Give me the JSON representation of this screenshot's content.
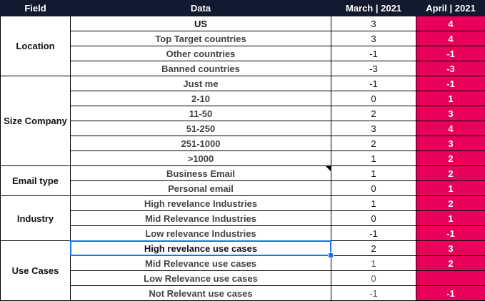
{
  "header": {
    "field": "Field",
    "data": "Data",
    "march": "March | 2021",
    "april": "April | 2021"
  },
  "groups": [
    {
      "field": "Location",
      "rows": [
        {
          "data": "US",
          "march": "3",
          "april": "4"
        },
        {
          "data": "Top Target countries",
          "march": "3",
          "april": "4"
        },
        {
          "data": "Other countries",
          "march": "-1",
          "april": "-1"
        },
        {
          "data": "Banned countries",
          "march": "-3",
          "april": "-3"
        }
      ]
    },
    {
      "field": "Size Company",
      "rows": [
        {
          "data": "Just me",
          "march": "-1",
          "april": "-1"
        },
        {
          "data": "2-10",
          "march": "0",
          "april": "1"
        },
        {
          "data": "11-50",
          "march": "2",
          "april": "3"
        },
        {
          "data": "51-250",
          "march": "3",
          "april": "4"
        },
        {
          "data": "251-1000",
          "march": "2",
          "april": "3"
        },
        {
          "data": ">1000",
          "march": "1",
          "april": "2"
        }
      ]
    },
    {
      "field": "Email type",
      "rows": [
        {
          "data": "Business Email",
          "march": "1",
          "april": "2"
        },
        {
          "data": "Personal email",
          "march": "0",
          "april": "1"
        }
      ]
    },
    {
      "field": "Industry",
      "rows": [
        {
          "data": "High revelance Industries",
          "march": "1",
          "april": "2"
        },
        {
          "data": "Mid Relevance Industries",
          "march": "0",
          "april": "1"
        },
        {
          "data": "Low relevance Industries",
          "march": "-1",
          "april": "-1"
        }
      ]
    },
    {
      "field": "Use Cases",
      "rows": [
        {
          "data": "High revelance use cases",
          "march": "2",
          "april": "3"
        },
        {
          "data": "Mid Relevance use cases",
          "march": "1",
          "april": "2"
        },
        {
          "data": "Low Relevance use cases",
          "march": "0",
          "april": ""
        },
        {
          "data": "Not Relevant use cases",
          "march": "-1",
          "april": "-1"
        }
      ]
    }
  ],
  "colors": {
    "header_bg": "#111a2e",
    "april_bg": "#e8005a",
    "selection": "#1a73e8"
  }
}
